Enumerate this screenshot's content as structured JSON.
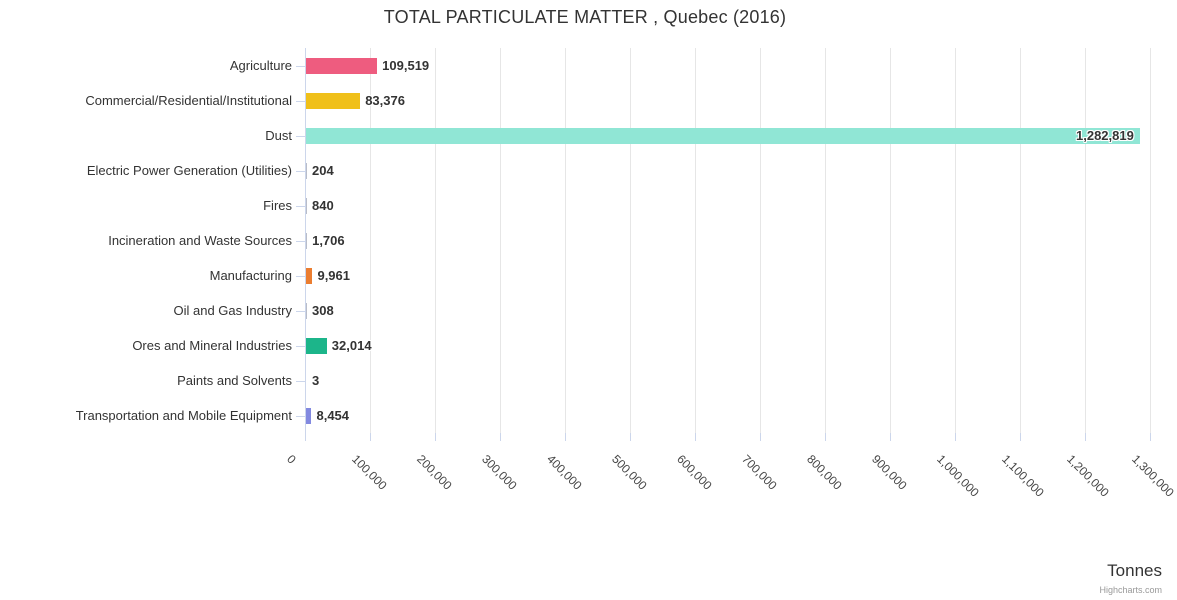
{
  "title": "TOTAL PARTICULATE MATTER , Quebec (2016)",
  "credits_label": "Highcharts.com",
  "chart_data": {
    "type": "bar",
    "orientation": "horizontal",
    "title": "TOTAL PARTICULATE MATTER , Quebec (2016)",
    "xlabel": "Tonnes",
    "ylabel": "",
    "legend": "none",
    "grid": true,
    "xlim": [
      0,
      1300000
    ],
    "tick_interval": 100000,
    "tick_labels": [
      "0",
      "100,000",
      "200,000",
      "300,000",
      "400,000",
      "500,000",
      "600,000",
      "700,000",
      "800,000",
      "900,000",
      "1,000,000",
      "1,100,000",
      "1,200,000",
      "1,300,000"
    ],
    "categories": [
      "Agriculture",
      "Commercial/Residential/Institutional",
      "Dust",
      "Electric Power Generation (Utilities)",
      "Fires",
      "Incineration and Waste Sources",
      "Manufacturing",
      "Oil and Gas Industry",
      "Ores and Mineral Industries",
      "Paints and Solvents",
      "Transportation and Mobile Equipment"
    ],
    "values": [
      109519,
      83376,
      1282819,
      204,
      840,
      1706,
      9961,
      308,
      32014,
      3,
      8454
    ],
    "value_labels": [
      "109,519",
      "83,376",
      "1,282,819",
      "204",
      "840",
      "1,706",
      "9,961",
      "308",
      "32,014",
      "3",
      "8,454"
    ],
    "bar_colors": [
      "#ee5c7f",
      "#f0c019",
      "#90e6d5",
      null,
      null,
      null,
      "#eb7d30",
      null,
      "#1cb58a",
      null,
      "#8289e0"
    ]
  },
  "theme": {
    "gridline_color": "#e6e6e6",
    "axis_color": "#ccd6eb",
    "text_color": "#333333",
    "tick_label_color": "#444444",
    "credits_color": "#999999",
    "fallback_bar_color": "#b9bdc9"
  }
}
